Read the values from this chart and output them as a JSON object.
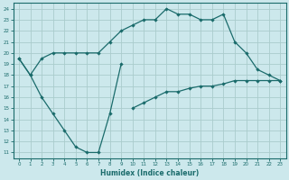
{
  "xlabel": "Humidex (Indice chaleur)",
  "bg_color": "#cce8ec",
  "grid_color": "#aacccc",
  "line_color": "#1a6b6b",
  "xlim": [
    -0.5,
    23.5
  ],
  "ylim": [
    10.5,
    24.5
  ],
  "xticks": [
    0,
    1,
    2,
    3,
    4,
    5,
    6,
    7,
    8,
    9,
    10,
    11,
    12,
    13,
    14,
    15,
    16,
    17,
    18,
    19,
    20,
    21,
    22,
    23
  ],
  "yticks": [
    11,
    12,
    13,
    14,
    15,
    16,
    17,
    18,
    19,
    20,
    21,
    22,
    23,
    24
  ],
  "line_up_x": [
    0,
    1,
    2,
    3,
    4,
    5,
    6,
    7,
    8,
    9,
    10,
    11,
    12,
    13,
    14,
    15,
    16,
    17,
    18,
    19,
    20,
    21,
    22,
    23
  ],
  "line_up_y": [
    19.5,
    18.0,
    19.5,
    20.0,
    20.0,
    20.0,
    20.0,
    20.0,
    21.0,
    22.0,
    22.5,
    23.0,
    23.0,
    24.0,
    23.5,
    23.5,
    23.0,
    23.0,
    23.5,
    21.0,
    20.0,
    18.5,
    18.0,
    17.5
  ],
  "line_dip_x": [
    0,
    1,
    2,
    3,
    4,
    5,
    6,
    7,
    8,
    9
  ],
  "line_dip_y": [
    19.5,
    18.0,
    16.0,
    14.5,
    13.0,
    11.5,
    11.0,
    11.0,
    14.5,
    19.0
  ],
  "line_bot_x": [
    10,
    11,
    12,
    13,
    14,
    15,
    16,
    17,
    18,
    19,
    20,
    21,
    22,
    23
  ],
  "line_bot_y": [
    15.0,
    15.5,
    16.0,
    16.5,
    16.5,
    16.8,
    17.0,
    17.0,
    17.2,
    17.5,
    17.5,
    17.5,
    17.5,
    17.5
  ]
}
